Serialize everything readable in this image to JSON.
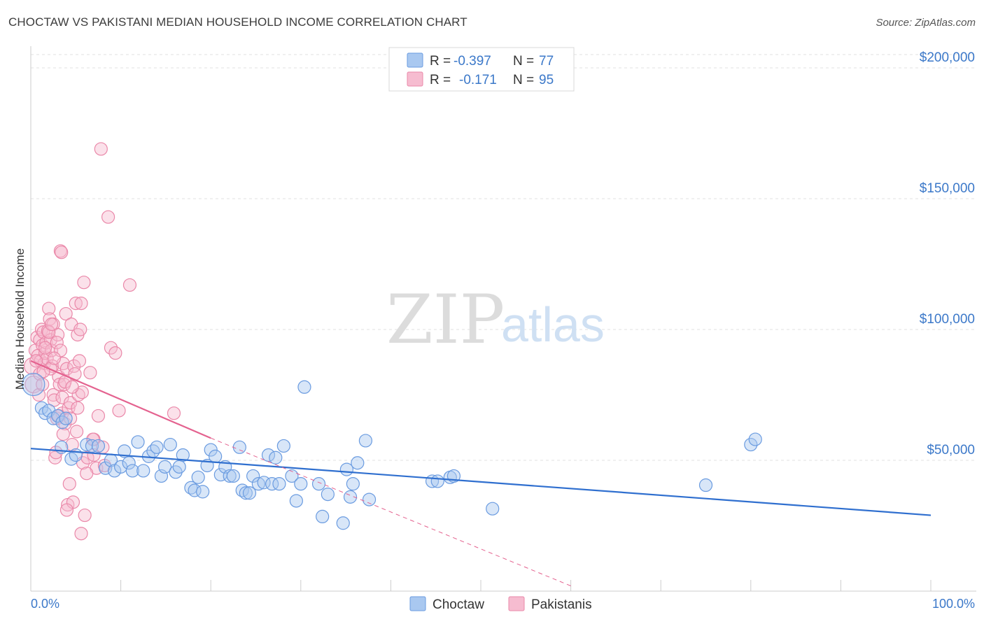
{
  "title": "CHOCTAW VS PAKISTANI MEDIAN HOUSEHOLD INCOME CORRELATION CHART",
  "source": "Source: ZipAtlas.com",
  "watermark": {
    "zip": "ZIP",
    "atlas": "atlas"
  },
  "legend": {
    "rows": [
      {
        "r_label": "R =",
        "r_value": "-0.397",
        "n_label": "N =",
        "n_value": "77",
        "color": "#a9c8f0",
        "stroke": "#6a9be0"
      },
      {
        "r_label": "R =",
        "r_value": "-0.171",
        "n_label": "N =",
        "n_value": "95",
        "color": "#f6bcd0",
        "stroke": "#ea88a9"
      }
    ]
  },
  "bottom_legend": [
    {
      "label": "Choctaw",
      "color": "#a9c8f0",
      "stroke": "#6a9be0"
    },
    {
      "label": "Pakistanis",
      "color": "#f6bcd0",
      "stroke": "#ea88a9"
    }
  ],
  "chart_data": {
    "type": "scatter",
    "title": "CHOCTAW VS PAKISTANI MEDIAN HOUSEHOLD INCOME CORRELATION CHART",
    "xlabel": "",
    "ylabel": "Median Household Income",
    "xlim": [
      0,
      100
    ],
    "ylim": [
      0,
      200000
    ],
    "x_tick_labels": [
      "0.0%",
      "100.0%"
    ],
    "y_ticks": [
      50000,
      100000,
      150000,
      200000
    ],
    "y_tick_labels": [
      "$50,000",
      "$100,000",
      "$150,000",
      "$200,000"
    ],
    "grid": true,
    "legend_position": "top-center",
    "series": [
      {
        "name": "Choctaw",
        "color": "#6a9be0",
        "fill": "#a9c8f0",
        "trend": {
          "x": [
            0,
            100
          ],
          "y": [
            54500,
            29000
          ],
          "color": "#2f6fcf"
        },
        "points": [
          [
            0.3,
            79000
          ],
          [
            1.2,
            70000
          ],
          [
            1.6,
            68000
          ],
          [
            2.0,
            69000
          ],
          [
            2.5,
            66000
          ],
          [
            3.0,
            67000
          ],
          [
            3.5,
            64500
          ],
          [
            3.9,
            66000
          ],
          [
            3.4,
            55000
          ],
          [
            4.5,
            50500
          ],
          [
            5.0,
            52000
          ],
          [
            6.2,
            56000
          ],
          [
            6.8,
            55500
          ],
          [
            7.5,
            55500
          ],
          [
            8.3,
            47000
          ],
          [
            8.9,
            50000
          ],
          [
            9.3,
            46000
          ],
          [
            10.0,
            47500
          ],
          [
            10.4,
            53500
          ],
          [
            10.9,
            49000
          ],
          [
            11.3,
            46000
          ],
          [
            11.9,
            57000
          ],
          [
            12.5,
            46000
          ],
          [
            13.1,
            51500
          ],
          [
            13.6,
            53500
          ],
          [
            14.0,
            55000
          ],
          [
            14.5,
            44000
          ],
          [
            14.9,
            47500
          ],
          [
            15.5,
            56000
          ],
          [
            16.1,
            45500
          ],
          [
            16.5,
            47500
          ],
          [
            16.9,
            52000
          ],
          [
            17.8,
            39500
          ],
          [
            18.2,
            38500
          ],
          [
            18.6,
            43500
          ],
          [
            19.1,
            38000
          ],
          [
            19.6,
            48000
          ],
          [
            20.0,
            54000
          ],
          [
            20.5,
            51500
          ],
          [
            21.1,
            44500
          ],
          [
            21.6,
            47500
          ],
          [
            22.1,
            44000
          ],
          [
            22.5,
            44000
          ],
          [
            23.2,
            55000
          ],
          [
            23.5,
            38500
          ],
          [
            23.9,
            37500
          ],
          [
            24.3,
            37500
          ],
          [
            24.7,
            44000
          ],
          [
            25.3,
            41000
          ],
          [
            25.9,
            41500
          ],
          [
            26.4,
            52000
          ],
          [
            26.8,
            41000
          ],
          [
            27.2,
            51000
          ],
          [
            27.6,
            41000
          ],
          [
            28.1,
            55500
          ],
          [
            29.0,
            44000
          ],
          [
            29.5,
            34500
          ],
          [
            30.0,
            41000
          ],
          [
            30.4,
            78000
          ],
          [
            32.0,
            41000
          ],
          [
            32.4,
            28500
          ],
          [
            33.0,
            37000
          ],
          [
            34.7,
            26000
          ],
          [
            35.1,
            46500
          ],
          [
            35.5,
            36000
          ],
          [
            35.8,
            41000
          ],
          [
            36.3,
            49000
          ],
          [
            37.2,
            57500
          ],
          [
            37.6,
            35000
          ],
          [
            44.6,
            42000
          ],
          [
            45.2,
            42000
          ],
          [
            46.6,
            43500
          ],
          [
            51.3,
            31500
          ],
          [
            75.0,
            40500
          ],
          [
            80.0,
            56000
          ],
          [
            80.5,
            58000
          ],
          [
            47.0,
            44000
          ]
        ]
      },
      {
        "name": "Pakistanis",
        "color": "#ea88a9",
        "fill": "#f6bcd0",
        "trend": {
          "x": [
            0,
            20
          ],
          "y": [
            88000,
            58500
          ],
          "color": "#e4628f"
        },
        "trend_extension": {
          "x": [
            20,
            60
          ],
          "y": [
            58500,
            2000
          ]
        },
        "points": [
          [
            0.2,
            86000
          ],
          [
            0.3,
            79000
          ],
          [
            0.5,
            92000
          ],
          [
            0.7,
            97000
          ],
          [
            0.8,
            90000
          ],
          [
            1.0,
            96000
          ],
          [
            1.1,
            88000
          ],
          [
            1.2,
            100000
          ],
          [
            1.3,
            94000
          ],
          [
            1.4,
            99000
          ],
          [
            1.5,
            87000
          ],
          [
            1.6,
            91000
          ],
          [
            1.7,
            95000
          ],
          [
            1.8,
            89000
          ],
          [
            1.9,
            99500
          ],
          [
            2.0,
            108000
          ],
          [
            2.1,
            104000
          ],
          [
            2.2,
            96000
          ],
          [
            2.3,
            92000
          ],
          [
            2.4,
            86000
          ],
          [
            2.5,
            102000
          ],
          [
            2.5,
            75000
          ],
          [
            2.6,
            73000
          ],
          [
            2.7,
            51000
          ],
          [
            2.8,
            53000
          ],
          [
            2.9,
            66000
          ],
          [
            3.0,
            98000
          ],
          [
            3.1,
            82000
          ],
          [
            3.2,
            79000
          ],
          [
            3.3,
            130000
          ],
          [
            3.4,
            129500
          ],
          [
            3.5,
            68000
          ],
          [
            3.5,
            74000
          ],
          [
            3.6,
            87000
          ],
          [
            3.7,
            79000
          ],
          [
            3.8,
            64000
          ],
          [
            3.9,
            106000
          ],
          [
            4.0,
            85000
          ],
          [
            4.1,
            33000
          ],
          [
            4.2,
            70000
          ],
          [
            4.3,
            41000
          ],
          [
            4.4,
            72000
          ],
          [
            4.5,
            102000
          ],
          [
            4.6,
            56000
          ],
          [
            4.7,
            34000
          ],
          [
            4.8,
            86000
          ],
          [
            4.9,
            83000
          ],
          [
            5.0,
            110000
          ],
          [
            5.1,
            61000
          ],
          [
            5.2,
            98000
          ],
          [
            5.3,
            75000
          ],
          [
            5.4,
            88000
          ],
          [
            5.5,
            100000
          ],
          [
            5.6,
            22000
          ],
          [
            5.7,
            76000
          ],
          [
            5.8,
            49000
          ],
          [
            5.9,
            118000
          ],
          [
            6.0,
            29000
          ],
          [
            6.3,
            51000
          ],
          [
            6.6,
            83500
          ],
          [
            7.0,
            58000
          ],
          [
            7.3,
            47000
          ],
          [
            7.5,
            67000
          ],
          [
            7.8,
            169000
          ],
          [
            8.2,
            48000
          ],
          [
            8.6,
            143000
          ],
          [
            8.9,
            93000
          ],
          [
            9.4,
            91000
          ],
          [
            9.8,
            69000
          ],
          [
            11.0,
            117000
          ],
          [
            15.9,
            68000
          ],
          [
            1.0,
            83000
          ],
          [
            0.9,
            75000
          ],
          [
            1.3,
            79000
          ],
          [
            2.2,
            85000
          ],
          [
            2.9,
            95000
          ],
          [
            3.3,
            92000
          ],
          [
            3.6,
            60000
          ],
          [
            4.0,
            31000
          ],
          [
            4.4,
            66000
          ],
          [
            2.0,
            99000
          ],
          [
            1.6,
            93000
          ],
          [
            0.6,
            88000
          ],
          [
            2.6,
            89000
          ],
          [
            3.8,
            80000
          ],
          [
            5.2,
            70000
          ],
          [
            6.2,
            45000
          ],
          [
            7.0,
            52000
          ],
          [
            1.4,
            84000
          ],
          [
            2.3,
            102000
          ],
          [
            3.1,
            67000
          ],
          [
            4.6,
            78000
          ],
          [
            5.6,
            110000
          ],
          [
            6.9,
            58000
          ],
          [
            8.0,
            55000
          ]
        ]
      }
    ]
  }
}
